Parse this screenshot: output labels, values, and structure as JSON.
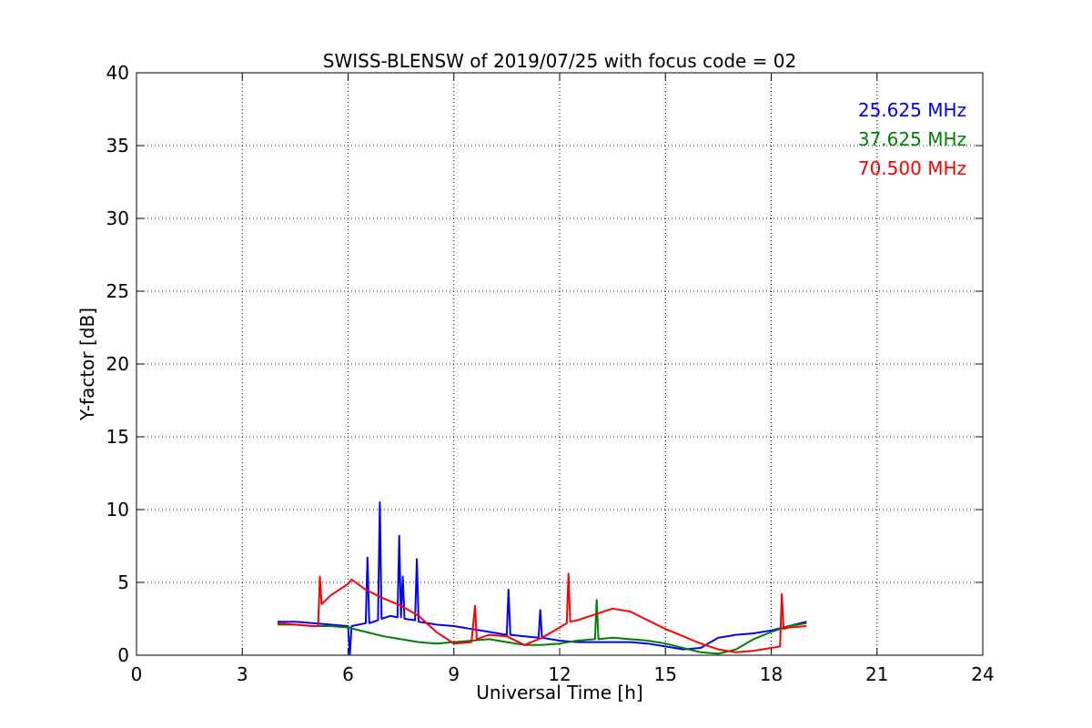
{
  "chart_data": {
    "type": "line",
    "title": "SWISS-BLENSW of 2019/07/25 with focus code = 02",
    "xlabel": "Universal Time [h]",
    "ylabel": "Y-factor [dB]",
    "xlim": [
      0,
      24
    ],
    "ylim": [
      0,
      40
    ],
    "xticks": [
      0,
      3,
      6,
      9,
      12,
      15,
      18,
      21,
      24
    ],
    "yticks": [
      0,
      5,
      10,
      15,
      20,
      25,
      30,
      35,
      40
    ],
    "grid": true,
    "grid_style": "dotted",
    "legend_position": "top-right",
    "series": [
      {
        "name": "25.625 MHz",
        "color": "#0000ff",
        "x": [
          4.0,
          4.5,
          5.0,
          5.5,
          6.0,
          6.05,
          6.1,
          6.5,
          6.55,
          6.6,
          6.85,
          6.9,
          6.95,
          7.2,
          7.4,
          7.45,
          7.5,
          7.55,
          7.6,
          7.9,
          7.95,
          8.0,
          8.5,
          9.0,
          9.5,
          10.0,
          10.5,
          10.55,
          10.6,
          11.0,
          11.4,
          11.45,
          11.5,
          12.0,
          12.5,
          13.0,
          13.5,
          14.0,
          14.5,
          15.0,
          15.5,
          16.0,
          16.5,
          17.0,
          17.5,
          18.0,
          18.5,
          19.0
        ],
        "y": [
          2.3,
          2.3,
          2.2,
          2.1,
          2.0,
          0.0,
          2.0,
          2.2,
          6.7,
          2.2,
          2.4,
          10.5,
          2.5,
          2.7,
          2.6,
          8.2,
          2.6,
          5.4,
          2.5,
          2.4,
          6.6,
          2.3,
          2.1,
          2.0,
          1.8,
          1.6,
          1.4,
          4.5,
          1.4,
          1.3,
          1.2,
          3.1,
          1.2,
          1.0,
          0.9,
          0.9,
          0.9,
          0.9,
          0.8,
          0.6,
          0.4,
          0.5,
          1.2,
          1.4,
          1.5,
          1.7,
          2.0,
          2.3
        ]
      },
      {
        "name": "37.625 MHz",
        "color": "#008000",
        "x": [
          4.0,
          4.5,
          5.0,
          5.5,
          6.0,
          6.5,
          7.0,
          7.5,
          8.0,
          8.5,
          9.0,
          9.5,
          10.0,
          10.5,
          11.0,
          11.5,
          12.0,
          12.5,
          13.0,
          13.05,
          13.1,
          13.5,
          14.0,
          14.5,
          15.0,
          15.5,
          16.0,
          16.5,
          17.0,
          17.5,
          18.0,
          18.5,
          19.0
        ],
        "y": [
          2.1,
          2.1,
          2.0,
          2.0,
          1.9,
          1.6,
          1.3,
          1.1,
          0.9,
          0.8,
          0.9,
          1.0,
          1.1,
          0.9,
          0.7,
          0.7,
          0.8,
          1.0,
          1.1,
          3.8,
          1.1,
          1.2,
          1.1,
          1.0,
          0.8,
          0.5,
          0.2,
          0.1,
          0.4,
          1.1,
          1.6,
          2.0,
          2.2
        ]
      },
      {
        "name": "70.500 MHz",
        "color": "#ff0000",
        "x": [
          4.0,
          4.5,
          5.0,
          5.15,
          5.2,
          5.25,
          5.5,
          6.0,
          6.1,
          6.5,
          7.0,
          7.5,
          8.0,
          8.5,
          9.0,
          9.5,
          9.6,
          9.65,
          10.0,
          10.5,
          11.0,
          11.5,
          12.0,
          12.2,
          12.25,
          12.3,
          12.5,
          13.0,
          13.5,
          14.0,
          14.5,
          15.0,
          15.5,
          16.0,
          16.5,
          17.0,
          17.5,
          18.0,
          18.25,
          18.3,
          18.35,
          18.5,
          19.0
        ],
        "y": [
          2.2,
          2.1,
          2.0,
          2.0,
          5.4,
          3.5,
          4.1,
          4.9,
          5.2,
          4.5,
          3.9,
          3.4,
          2.7,
          1.6,
          0.8,
          0.9,
          3.4,
          1.1,
          1.4,
          1.3,
          0.7,
          1.2,
          1.9,
          2.2,
          5.6,
          2.3,
          2.4,
          2.8,
          3.2,
          3.0,
          2.4,
          1.8,
          1.3,
          0.8,
          0.4,
          0.2,
          0.3,
          0.5,
          0.6,
          4.2,
          1.8,
          1.9,
          2.0
        ]
      }
    ]
  }
}
